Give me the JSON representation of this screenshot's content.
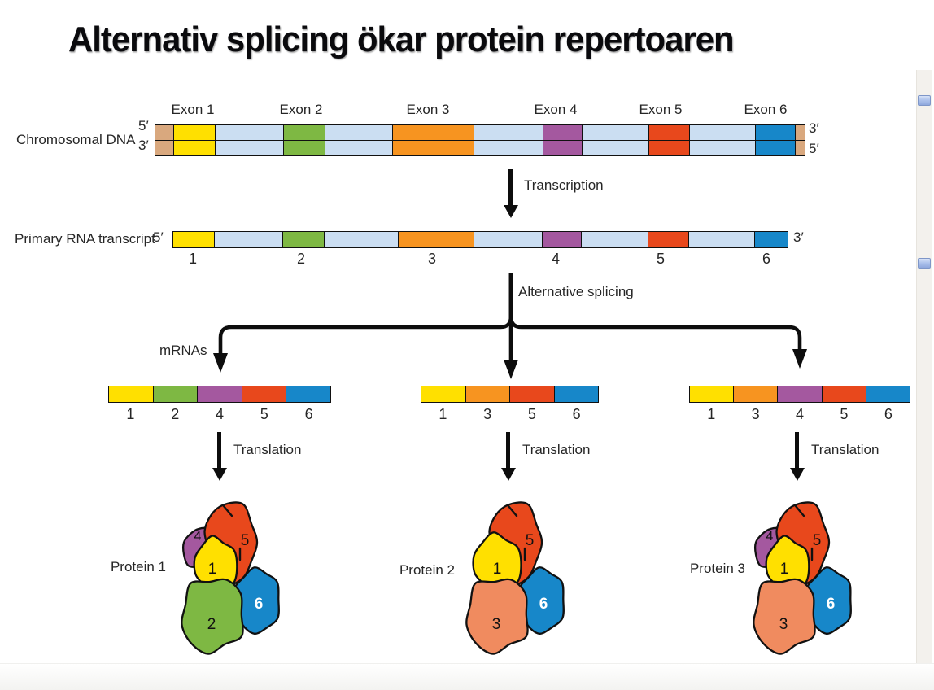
{
  "title": "Alternativ splicing ökar protein repertoaren",
  "palette": {
    "exon1_yellow": "#FFE000",
    "exon2_green": "#7EB843",
    "exon3_orange": "#F79420",
    "exon4_purple": "#A4589F",
    "exon5_red": "#E8481C",
    "exon6_blue": "#1787C9",
    "intron_lightblue": "#CBDEF2",
    "dna_end_tan": "#D9A87E",
    "protein_salmon": "#F08B5F",
    "outline_black": "#111111"
  },
  "dna": {
    "label": "Chromosomal DNA",
    "left_top_end": "5′",
    "left_bottom_end": "3′",
    "right_top_end": "3′",
    "right_bottom_end": "5′",
    "exon_labels": [
      "Exon 1",
      "Exon 2",
      "Exon 3",
      "Exon 4",
      "Exon 5",
      "Exon 6"
    ]
  },
  "transcription": {
    "label": "Transcription"
  },
  "rna": {
    "label": "Primary RNA transcript",
    "five_prime": "5′",
    "three_prime": "3′",
    "exon_numbers": [
      "1",
      "2",
      "3",
      "4",
      "5",
      "6"
    ]
  },
  "splicing": {
    "label": "Alternative splicing",
    "mrnas_label": "mRNAs"
  },
  "mrnas": [
    {
      "exon_numbers": [
        "1",
        "2",
        "4",
        "5",
        "6"
      ]
    },
    {
      "exon_numbers": [
        "1",
        "3",
        "5",
        "6"
      ]
    },
    {
      "exon_numbers": [
        "1",
        "3",
        "4",
        "5",
        "6"
      ]
    }
  ],
  "translation": {
    "label": "Translation"
  },
  "proteins": [
    {
      "label": "Protein 1",
      "subunits": [
        "4",
        "5",
        "1",
        "2",
        "6"
      ]
    },
    {
      "label": "Protein 2",
      "subunits": [
        "5",
        "1",
        "3",
        "6"
      ]
    },
    {
      "label": "Protein 3",
      "subunits": [
        "4",
        "5",
        "1",
        "3",
        "6"
      ]
    }
  ]
}
